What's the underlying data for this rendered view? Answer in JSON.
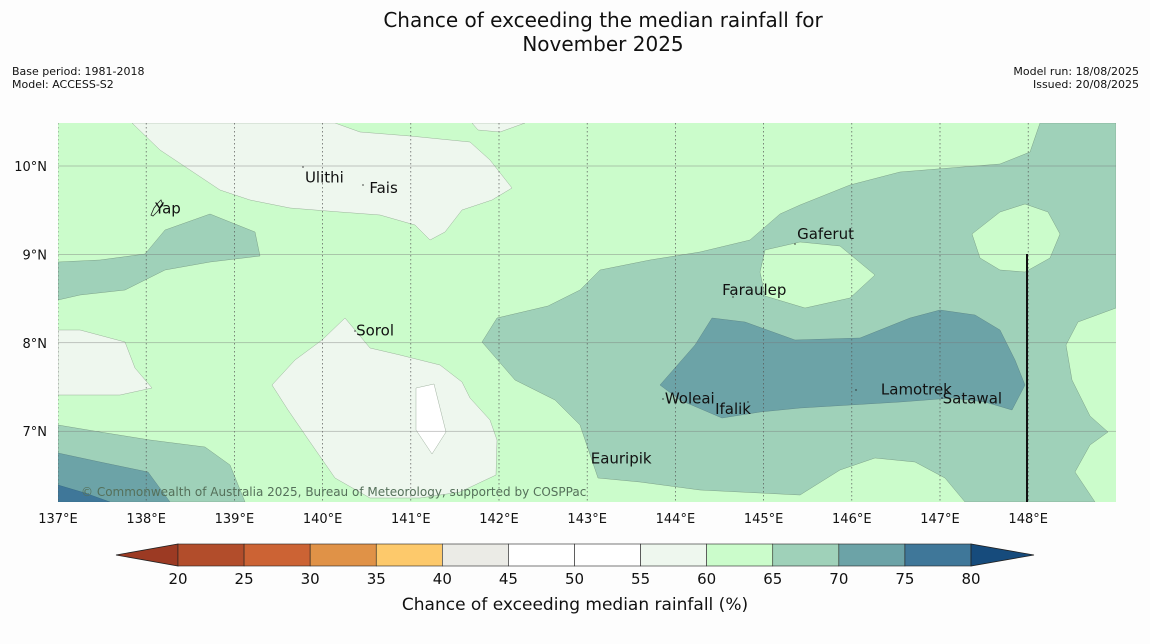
{
  "title_line1": "Chance of exceeding the median rainfall for",
  "title_line2": "November 2025",
  "meta_left": [
    "Base period: 1981-2018",
    "Model: ACCESS-S2"
  ],
  "meta_right": [
    "Model run: 18/08/2025",
    "Issued: 20/08/2025"
  ],
  "copyright": "© Commonwealth of Australia 2025, Bureau of Meteorology, supported by COSPPac",
  "places": [
    {
      "name": "Ulithi",
      "lon": 139.8,
      "lat": 9.87
    },
    {
      "name": "Fais",
      "lon": 140.53,
      "lat": 9.75
    },
    {
      "name": "Yap",
      "lon": 138.1,
      "lat": 9.52
    },
    {
      "name": "Gaferut",
      "lon": 145.38,
      "lat": 9.23
    },
    {
      "name": "Faraulep",
      "lon": 144.53,
      "lat": 8.6
    },
    {
      "name": "Sorol",
      "lon": 140.38,
      "lat": 8.14
    },
    {
      "name": "Lamotrek",
      "lon": 146.33,
      "lat": 7.47
    },
    {
      "name": "Woleai",
      "lon": 143.88,
      "lat": 7.37
    },
    {
      "name": "Ifalik",
      "lon": 144.45,
      "lat": 7.25
    },
    {
      "name": "Satawal",
      "lon": 147.03,
      "lat": 7.37
    },
    {
      "name": "Eauripik",
      "lon": 143.04,
      "lat": 6.69
    }
  ],
  "map": {
    "lon_ticks": [
      "137°E",
      "138°E",
      "139°E",
      "140°E",
      "141°E",
      "142°E",
      "143°E",
      "144°E",
      "145°E",
      "146°E",
      "147°E",
      "148°E"
    ],
    "lat_ticks": [
      "10°N",
      "9°N",
      "8°N",
      "7°N"
    ]
  },
  "colorbar": {
    "ticks": [
      "20",
      "25",
      "30",
      "35",
      "40",
      "45",
      "50",
      "55",
      "60",
      "65",
      "70",
      "75",
      "80"
    ],
    "colors": [
      "#9c3a23",
      "#b24d2b",
      "#cc6334",
      "#e09247",
      "#fdc96b",
      "#ebebe6",
      "#ffffff",
      "#ffffff",
      "#eef7ee",
      "#cbfccb",
      "#9fd1b9",
      "#6ca3a7",
      "#3f7799",
      "#164b7c"
    ],
    "label": "Chance of exceeding median rainfall (%)"
  },
  "legend_colors": {
    "c55_60": "#eef7ee",
    "c60_65": "#cbfccb",
    "c65_70": "#9fd1b9",
    "c70_75": "#6ca3a7",
    "c75_80": "#3f7799",
    "c45_55": "#ffffff"
  }
}
